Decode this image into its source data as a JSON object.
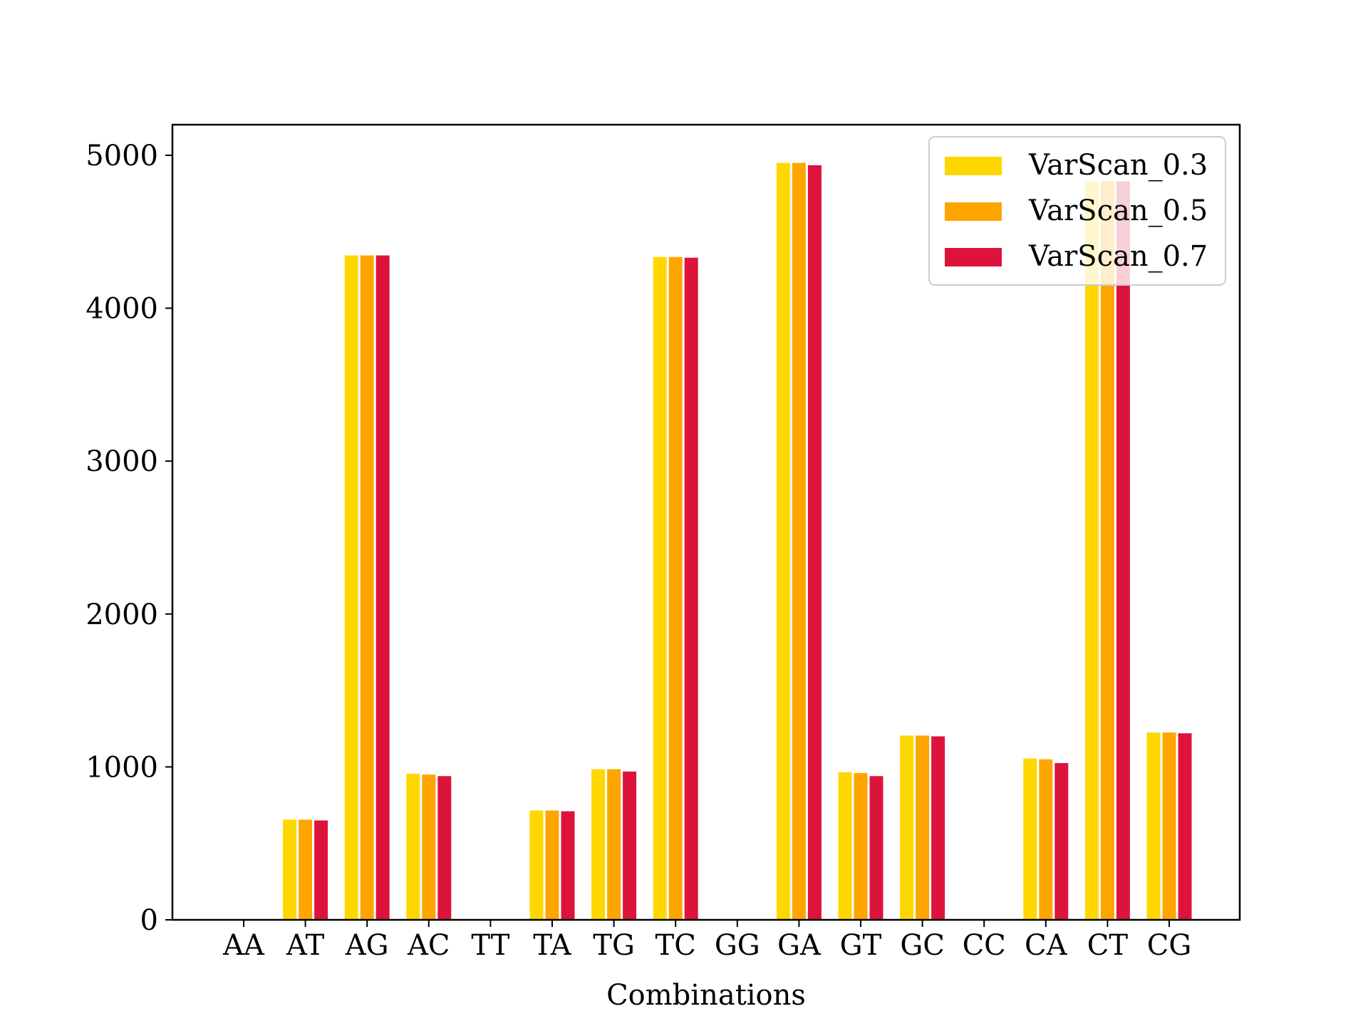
{
  "chart_data": {
    "type": "bar",
    "title": "",
    "xlabel": "Combinations",
    "ylabel": "",
    "ylim": [
      0,
      5200
    ],
    "yticks": [
      0,
      1000,
      2000,
      3000,
      4000,
      5000
    ],
    "grid": false,
    "legend_position": "top-right",
    "categories": [
      "AA",
      "AT",
      "AG",
      "AC",
      "TT",
      "TA",
      "TG",
      "TC",
      "GG",
      "GA",
      "GT",
      "GC",
      "CC",
      "CA",
      "CT",
      "CG"
    ],
    "series": [
      {
        "name": "VarScan_0.3",
        "color": "#FFD700",
        "values": [
          0,
          655,
          4345,
          955,
          0,
          715,
          985,
          4335,
          0,
          4950,
          965,
          1205,
          0,
          1055,
          4830,
          1225
        ]
      },
      {
        "name": "VarScan_0.5",
        "color": "#FFA500",
        "values": [
          0,
          655,
          4345,
          950,
          0,
          715,
          985,
          4335,
          0,
          4950,
          960,
          1205,
          0,
          1050,
          4830,
          1225
        ]
      },
      {
        "name": "VarScan_0.7",
        "color": "#DC143C",
        "values": [
          0,
          650,
          4345,
          940,
          0,
          710,
          970,
          4330,
          0,
          4935,
          940,
          1200,
          0,
          1025,
          4830,
          1220
        ]
      }
    ]
  }
}
